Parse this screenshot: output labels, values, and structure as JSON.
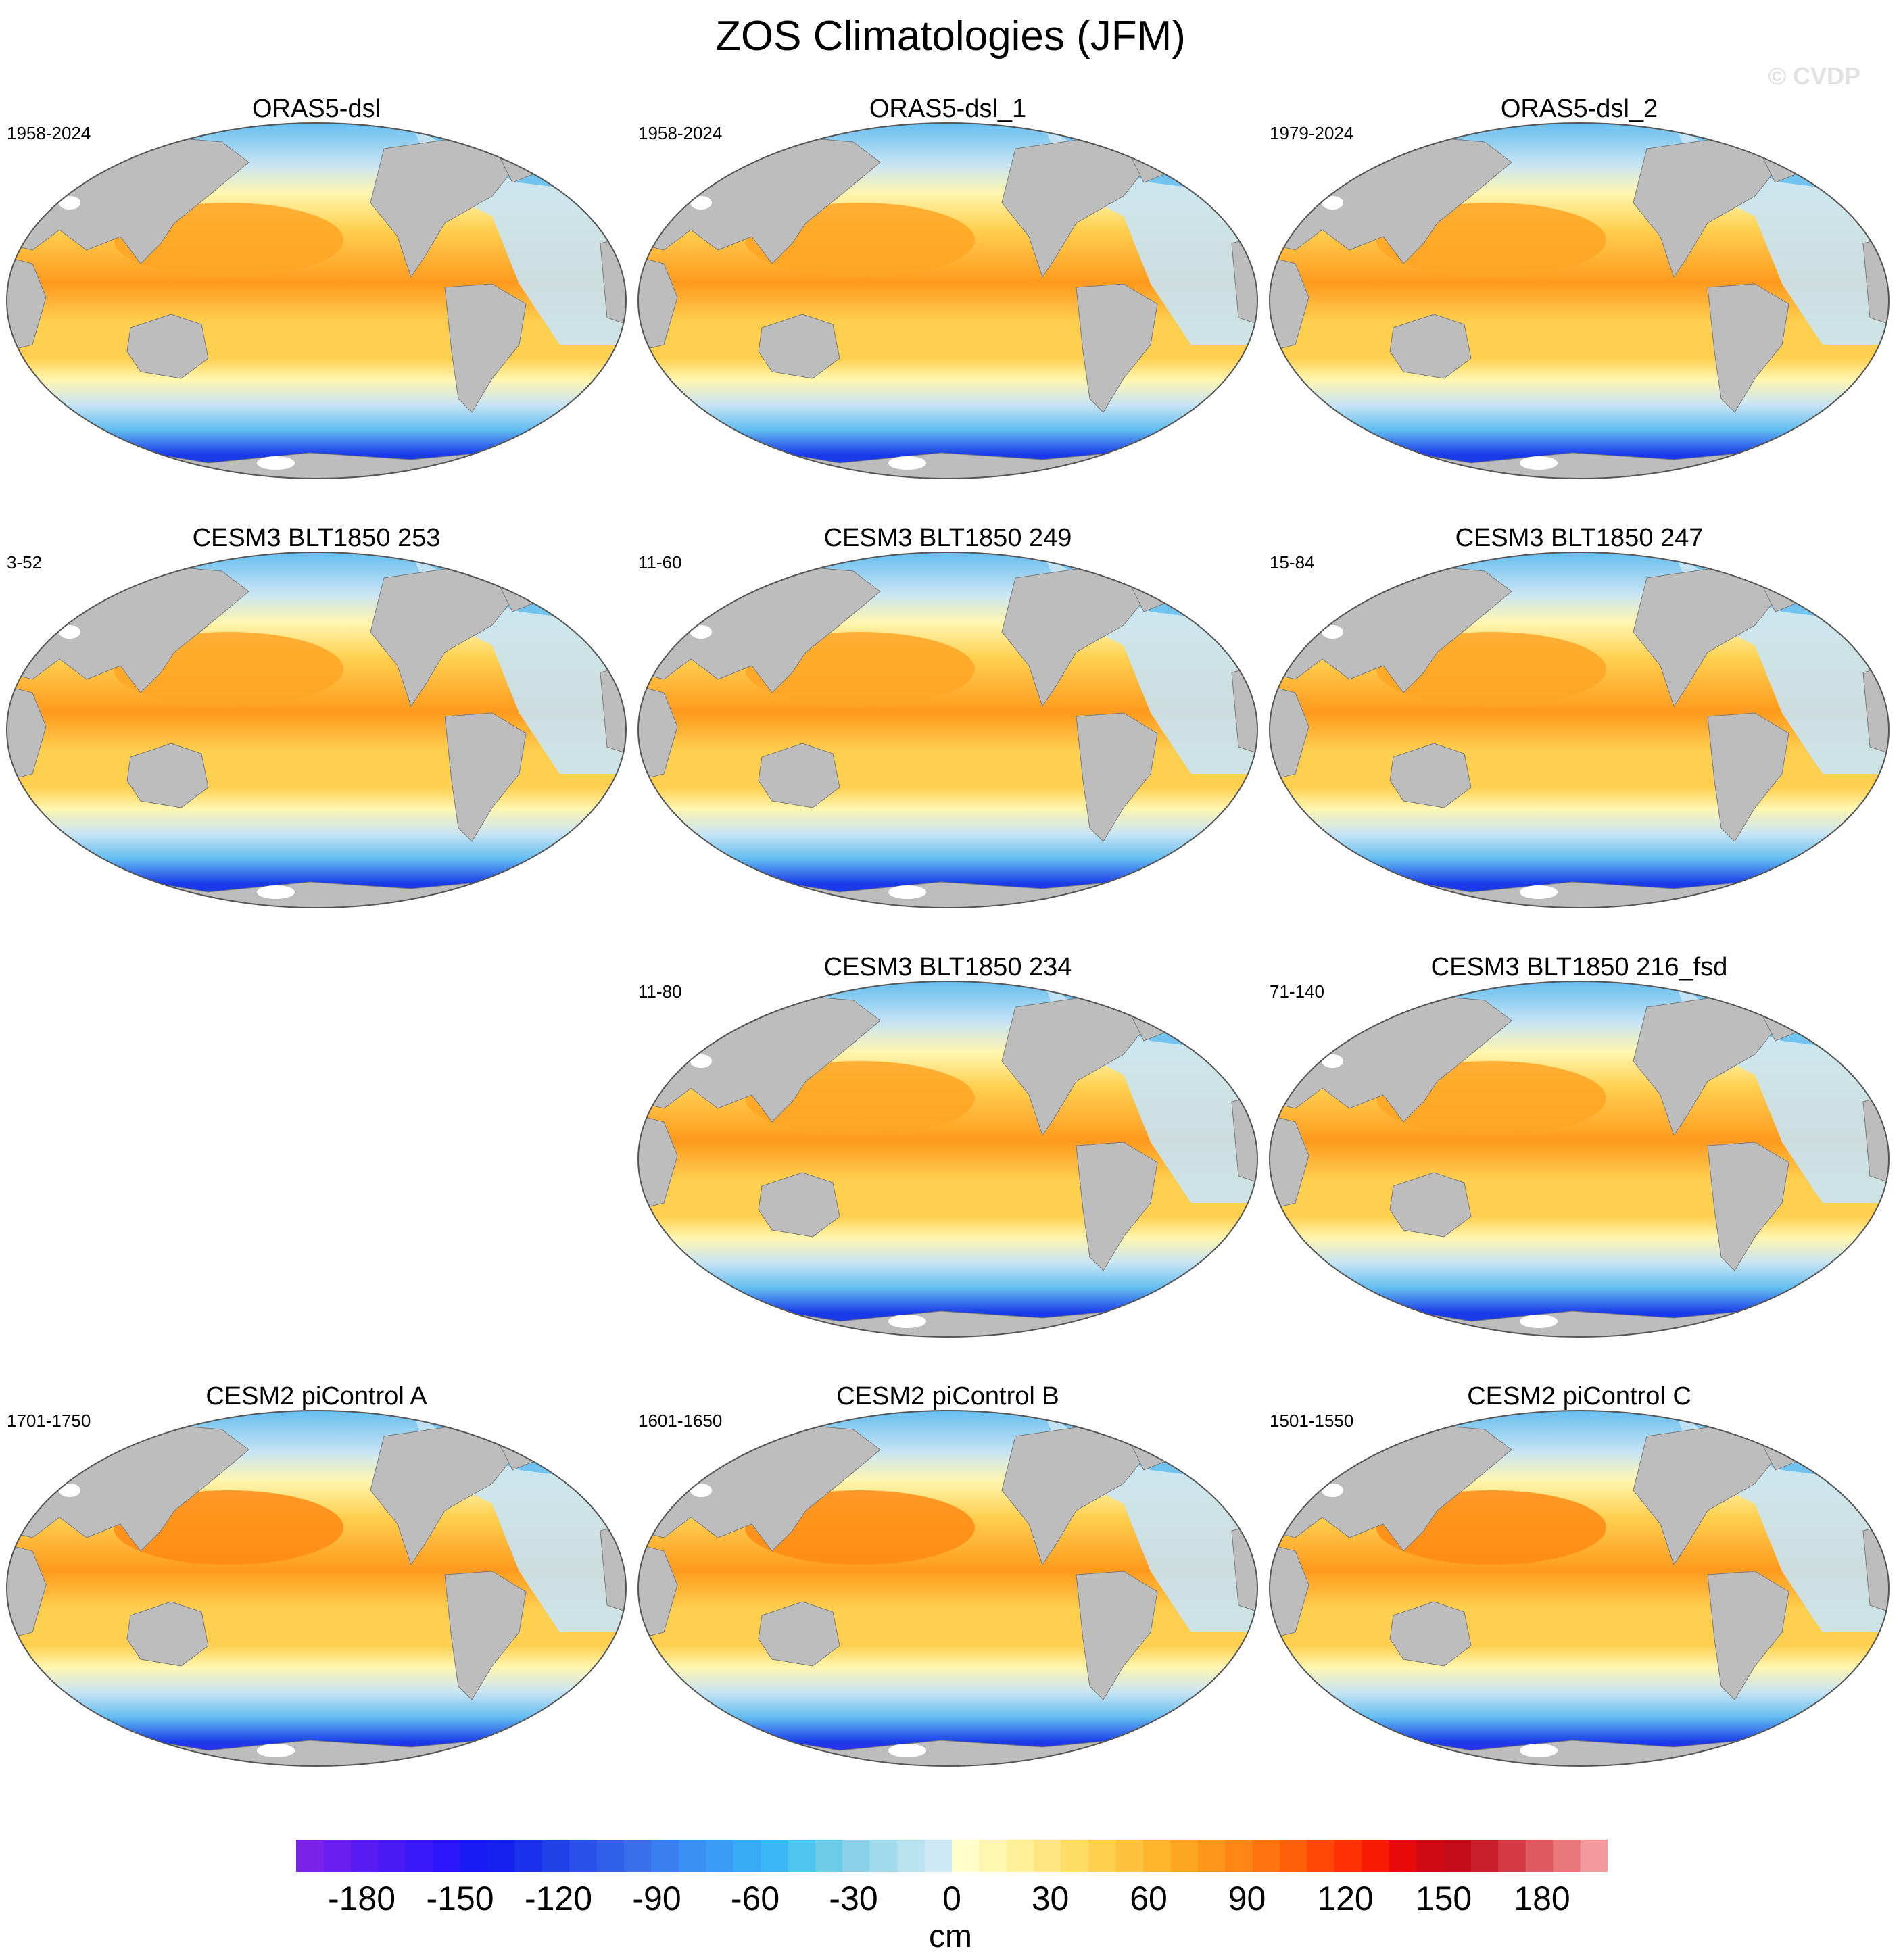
{
  "title": "ZOS Climatologies (JFM)",
  "watermark": "© CVDP",
  "panels": [
    {
      "title": "ORAS5-dsl",
      "years": "1958-2024",
      "pattern": "reanalysis"
    },
    {
      "title": "ORAS5-dsl_1",
      "years": "1958-2024",
      "pattern": "reanalysis"
    },
    {
      "title": "ORAS5-dsl_2",
      "years": "1979-2024",
      "pattern": "reanalysis"
    },
    {
      "title": "CESM3 BLT1850 253",
      "years": "3-52",
      "pattern": "cesm3"
    },
    {
      "title": "CESM3 BLT1850 249",
      "years": "11-60",
      "pattern": "cesm3"
    },
    {
      "title": "CESM3 BLT1850 247",
      "years": "15-84",
      "pattern": "cesm3"
    },
    {
      "title": "CESM3 BLT1850 234",
      "years": "11-80",
      "pattern": "cesm3"
    },
    {
      "title": "CESM3 BLT1850 216_fsd",
      "years": "71-140",
      "pattern": "cesm3"
    },
    {
      "title": "CESM2 piControl A",
      "years": "1701-1750",
      "pattern": "cesm2"
    },
    {
      "title": "CESM2 piControl B",
      "years": "1601-1650",
      "pattern": "cesm2"
    },
    {
      "title": "CESM2 piControl C",
      "years": "1501-1550",
      "pattern": "cesm2"
    }
  ],
  "colorbar": {
    "unit": "cm",
    "min": -200,
    "max": 200,
    "step": 10,
    "ticks": [
      -180,
      -150,
      -120,
      -90,
      -60,
      -30,
      0,
      30,
      60,
      90,
      120,
      150,
      180
    ],
    "tick_labels": [
      "-180",
      "-150",
      "-120",
      "-90",
      "-60",
      "-30",
      "0",
      "30",
      "60",
      "90",
      "120",
      "150",
      "180"
    ],
    "colors": [
      "#7a22e8",
      "#6a1fee",
      "#5a1cf2",
      "#4a1af5",
      "#3a18f7",
      "#2a16f8",
      "#1a1af5",
      "#1522ef",
      "#1a30ea",
      "#2040e8",
      "#2a50e8",
      "#3060ea",
      "#3870ec",
      "#3a80f0",
      "#3a8ff2",
      "#3a9cf5",
      "#38aaf6",
      "#3ab8f5",
      "#50c4f0",
      "#6ccce8",
      "#8ad2ea",
      "#a2daee",
      "#b8e2f0",
      "#cce8f4",
      "#ffffcc",
      "#fff6b0",
      "#ffef98",
      "#ffe680",
      "#ffdc66",
      "#ffd04e",
      "#ffc23c",
      "#ffb52e",
      "#ffa524",
      "#ff961c",
      "#ff8614",
      "#ff740e",
      "#ff600a",
      "#ff4806",
      "#ff3004",
      "#f81a02",
      "#e80a0a",
      "#d00a14",
      "#c40c1a",
      "#c81e2a",
      "#d43a44",
      "#de5a60",
      "#e8787c",
      "#f29a9c"
    ]
  },
  "palette": {
    "land": "#bdbdbd",
    "ice": "#ffffff",
    "pos_low": "#fff6b0",
    "pos_mid": "#ffd050",
    "pos_high": "#ff9a1e",
    "neg_low": "#c8e4f4",
    "neg_mid": "#62bdf0",
    "neg_high": "#1a3ae8",
    "neg_max": "#5a1cf2"
  }
}
